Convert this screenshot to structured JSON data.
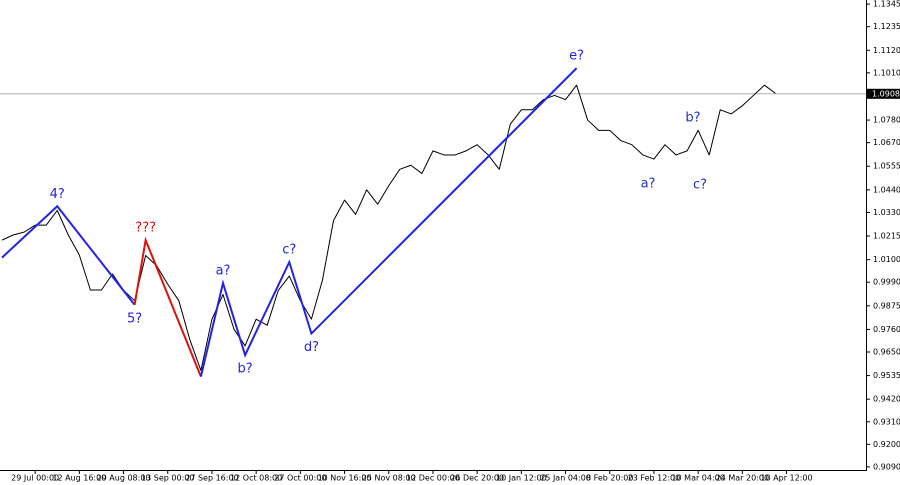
{
  "chart_data": {
    "type": "line",
    "categories": [
      null,
      null,
      null,
      "29 Jul 00:00",
      null,
      null,
      null,
      "12 Aug 16:00",
      null,
      null,
      null,
      "29 Aug 08:00",
      null,
      null,
      null,
      "13 Sep 00:00",
      null,
      null,
      null,
      "27 Sep 16:00",
      null,
      null,
      null,
      "12 Oct 08:00",
      null,
      null,
      null,
      "27 Oct 00:00",
      null,
      null,
      null,
      "10 Nov 16:00",
      null,
      null,
      null,
      "25 Nov 08:00",
      null,
      null,
      null,
      "12 Dec 00:00",
      null,
      null,
      null,
      "26 Dec 20:00",
      null,
      null,
      null,
      "10 Jan 12:00",
      null,
      null,
      null,
      "25 Jan 04:00",
      null,
      null,
      null,
      "8 Feb 20:00",
      null,
      null,
      null,
      "23 Feb 12:00",
      null,
      null,
      null,
      "10 Mar 04:00",
      null,
      null,
      null,
      "24 Mar 20:00",
      null,
      null,
      null,
      "10 Apr 12:00"
    ],
    "values": [
      1.0195,
      1.022,
      1.0234,
      1.0268,
      1.0268,
      1.034,
      1.022,
      1.0122,
      0.9952,
      0.9952,
      1.003,
      0.995,
      0.99,
      1.012,
      1.007,
      0.998,
      0.99,
      0.971,
      0.956,
      0.981,
      0.993,
      0.976,
      0.968,
      0.981,
      0.978,
      0.995,
      1.002,
      0.99,
      0.981,
      1.0,
      1.029,
      1.039,
      1.032,
      1.044,
      1.037,
      1.046,
      1.054,
      1.056,
      1.052,
      1.063,
      1.061,
      1.061,
      1.063,
      1.066,
      1.061,
      1.054,
      1.076,
      1.083,
      1.083,
      1.088,
      1.09,
      1.088,
      1.095,
      1.078,
      1.073,
      1.073,
      1.068,
      1.066,
      1.061,
      1.059,
      1.066,
      1.061,
      1.063,
      1.073,
      1.061,
      1.083,
      1.081,
      1.085,
      1.09,
      1.095,
      1.091,
      null
    ],
    "color": "#000000",
    "ylim": [
      0.9075,
      1.1365
    ],
    "yticks": [
      1.1345,
      1.1235,
      {
        "value": 1.112,
        "label": "1.1120"
      },
      {
        "value": 1.101,
        "label": "1.1010"
      },
      {
        "value": 1.078,
        "label": "1.0780"
      },
      {
        "value": 1.067,
        "label": "1.0670"
      },
      1.0555,
      {
        "value": 1.044,
        "label": "1.0440"
      },
      {
        "value": 1.033,
        "label": "1.0330"
      },
      1.0215,
      {
        "value": 1.01,
        "label": "1.0100"
      },
      {
        "value": 0.999,
        "label": "0.9990"
      },
      0.9875,
      {
        "value": 0.976,
        "label": "0.9760"
      },
      {
        "value": 0.965,
        "label": "0.9650"
      },
      0.9535,
      {
        "value": 0.942,
        "label": "0.9420"
      },
      {
        "value": 0.931,
        "label": "0.9310"
      },
      {
        "value": 0.92,
        "label": "0.9200"
      },
      {
        "value": 0.909,
        "label": "0.9090"
      }
    ],
    "current_price": 1.0908,
    "waves": [
      {
        "color": "#2323e6",
        "x": [
          0,
          5,
          12
        ],
        "values": [
          1.011,
          1.036,
          0.988
        ],
        "labels": [
          null,
          "4?",
          "5?"
        ]
      },
      {
        "color": "#e01010",
        "x": [
          12,
          13,
          18
        ],
        "values": [
          0.988,
          1.0195,
          0.953
        ],
        "labels": [
          null,
          "???",
          null
        ]
      },
      {
        "color": "#2323e6",
        "x": [
          18,
          20,
          22,
          26,
          28,
          52
        ],
        "values": [
          0.953,
          0.9986,
          0.9635,
          1.0088,
          0.974,
          1.1033
        ],
        "labels": [
          null,
          "a?",
          "b?",
          "c?",
          "d?",
          "e?"
        ]
      }
    ],
    "annotations": [
      "a?",
      "b?",
      "c?"
    ]
  }
}
